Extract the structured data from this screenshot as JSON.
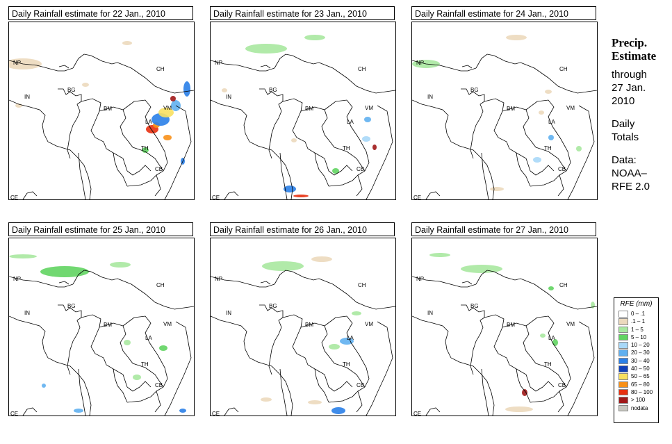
{
  "panels": [
    {
      "title": "Daily Rainfall estimate for  22 Jan., 2010"
    },
    {
      "title": "Daily Rainfall estimate for  23 Jan., 2010"
    },
    {
      "title": "Daily Rainfall estimate for  24 Jan., 2010"
    },
    {
      "title": "Daily Rainfall estimate for  25 Jan., 2010"
    },
    {
      "title": "Daily Rainfall estimate for  26 Jan., 2010"
    },
    {
      "title": "Daily Rainfall estimate for  27 Jan., 2010"
    }
  ],
  "country_labels": [
    "NP",
    "CH",
    "BG",
    "IN",
    "BM",
    "VM",
    "LA",
    "TH",
    "CB",
    "CE"
  ],
  "sidebar": {
    "title_line1": "Precip.",
    "title_line2": "Estimate",
    "through": "through",
    "date_line1": "27 Jan.",
    "date_line2": "2010",
    "daily_line1": "Daily",
    "daily_line2": "Totals",
    "data_line1": "Data:",
    "data_line2": "NOAA–",
    "data_line3": "RFE 2.0"
  },
  "legend": {
    "title": "RFE (mm)",
    "items": [
      {
        "label": "0 – .1",
        "color": "#ffffff"
      },
      {
        "label": ".1 – 1",
        "color": "#ecd9bd"
      },
      {
        "label": "1 – 5",
        "color": "#a8e8a0"
      },
      {
        "label": "5 – 10",
        "color": "#62d462"
      },
      {
        "label": "10 – 20",
        "color": "#a8d8f8"
      },
      {
        "label": "20 – 30",
        "color": "#60b0f0"
      },
      {
        "label": "30 – 40",
        "color": "#2a80e8"
      },
      {
        "label": "40 – 50",
        "color": "#1040b8"
      },
      {
        "label": "50 – 65",
        "color": "#f8e060"
      },
      {
        "label": "65 – 80",
        "color": "#f89018"
      },
      {
        "label": "80 – 100",
        "color": "#e83010"
      },
      {
        "label": "> 100",
        "color": "#a01818"
      },
      {
        "label": "nodata",
        "color": "#c8c8c0"
      }
    ]
  }
}
